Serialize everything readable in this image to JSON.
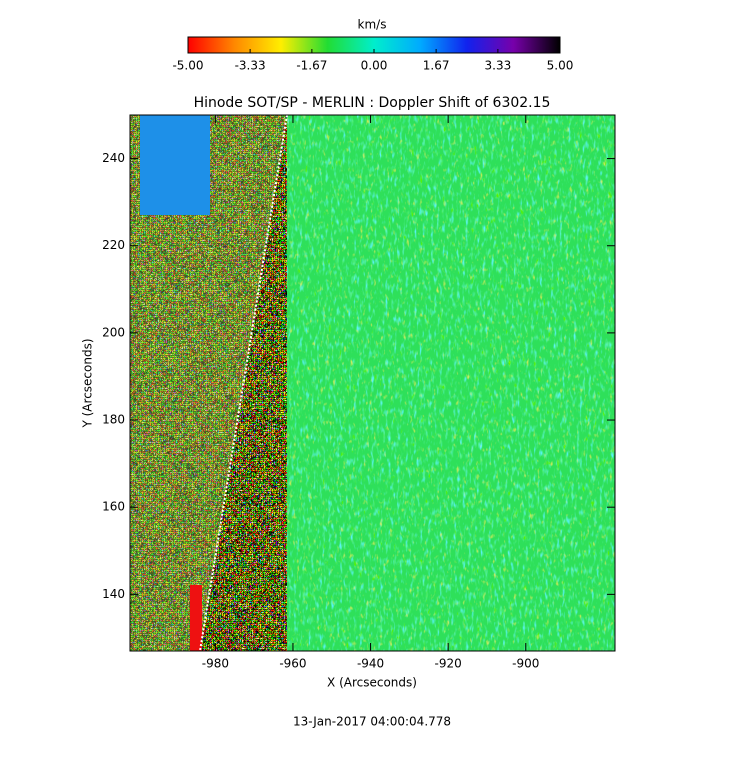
{
  "chart_data": {
    "type": "image",
    "title": "Hinode SOT/SP - MERLIN : Doppler Shift of 6302.15",
    "xlabel": "X (Arcseconds)",
    "ylabel": "Y (Arcseconds)",
    "xlim": [
      -1002,
      -877
    ],
    "xticks": [
      -980,
      -960,
      -940,
      -920,
      -900
    ],
    "ylim": [
      127,
      250
    ],
    "yticks": [
      140,
      160,
      180,
      200,
      220,
      240
    ],
    "colorbar": {
      "label": "km/s",
      "lim": [
        -5,
        5
      ],
      "ticks": [
        {
          "value": -5,
          "label": "-5.00"
        },
        {
          "value": -3.33,
          "label": "-3.33"
        },
        {
          "value": -1.67,
          "label": "-1.67"
        },
        {
          "value": 0,
          "label": "0.00"
        },
        {
          "value": 1.67,
          "label": "1.67"
        },
        {
          "value": 3.33,
          "label": "3.33"
        },
        {
          "value": 5,
          "label": "5.00"
        }
      ],
      "colors": [
        "#ff0000",
        "#ff8800",
        "#ffee00",
        "#22dd33",
        "#00eecc",
        "#00aaff",
        "#1122ee",
        "#7700aa",
        "#000000"
      ]
    },
    "footer": "13-Jan-2017 04:00:04.778"
  }
}
